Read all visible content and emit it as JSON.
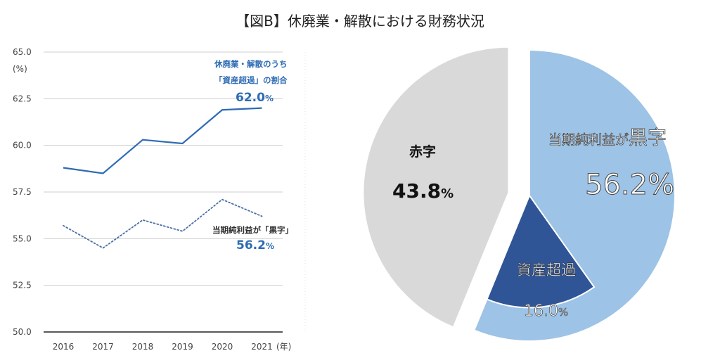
{
  "title": "【図B】休廃業・解散における財務状況",
  "chart_data": [
    {
      "type": "line",
      "x": [
        "2016",
        "2017",
        "2018",
        "2019",
        "2020",
        "2021"
      ],
      "xlabel": "(年)",
      "ylabel": "(%)",
      "ylim": [
        50.0,
        65.0
      ],
      "yticks": [
        "50.0",
        "52.5",
        "55.0",
        "57.5",
        "60.0",
        "62.5",
        "65.0"
      ],
      "grid": true,
      "series": [
        {
          "name_lines": [
            "休廃業・解散のうち",
            "「資産超過」の割合"
          ],
          "values": [
            58.8,
            58.5,
            60.3,
            60.1,
            61.9,
            62.0
          ],
          "end_label": "62.0",
          "unit": "%",
          "style": "solid",
          "color": "#2e6bb3"
        },
        {
          "name_lines": [
            "当期純利益が「黒字」"
          ],
          "values": [
            55.7,
            54.5,
            56.0,
            55.4,
            57.1,
            56.2
          ],
          "end_label": "56.2",
          "unit": "%",
          "style": "dotted",
          "color": "#4a6fa5"
        }
      ]
    },
    {
      "type": "pie",
      "slices": [
        {
          "label": "当期純利益が",
          "label_big": "黒字",
          "value": 56.2,
          "value_label": "56.2%",
          "color": "#9dc3e6"
        },
        {
          "label": "赤字",
          "value": 43.8,
          "value_label": "43.8",
          "unit": "%",
          "color": "#d9d9d9"
        }
      ],
      "inner_slice": {
        "label": "資産超過",
        "value": 16.0,
        "value_label": "16.0",
        "unit": "%",
        "color": "#2f5597"
      }
    }
  ]
}
